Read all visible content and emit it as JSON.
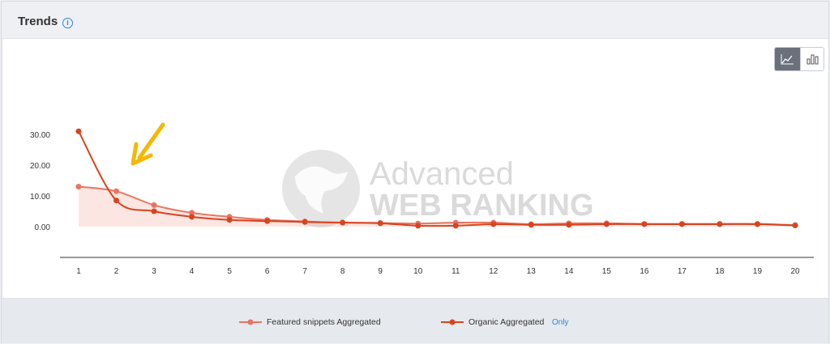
{
  "header": {
    "title": "Trends",
    "info_icon": "info-icon"
  },
  "toggle": {
    "line_icon": "line-chart-icon",
    "bar_icon": "bar-chart-icon",
    "active": "line"
  },
  "watermark": {
    "line1": "Advanced",
    "line2": "WEB RANKING",
    "icon": "globe-icon"
  },
  "annotation": {
    "icon": "arrow-icon",
    "color": "#f5b800"
  },
  "legend": {
    "items": [
      {
        "label": "Featured snippets Aggregated",
        "color": "#e87560"
      },
      {
        "label": "Organic Aggregated",
        "color": "#d9431e"
      }
    ],
    "only_label": "Only"
  },
  "chart_data": {
    "type": "line",
    "x": [
      1,
      2,
      3,
      4,
      5,
      6,
      7,
      8,
      9,
      10,
      11,
      12,
      13,
      14,
      15,
      16,
      17,
      18,
      19,
      20
    ],
    "ylim": [
      0,
      30
    ],
    "yticks": [
      "0.00",
      "10.00",
      "20.00",
      "30.00"
    ],
    "ytick_values": [
      0,
      10,
      20,
      30
    ],
    "grid": false,
    "legend_position": "bottom",
    "series": [
      {
        "name": "Featured snippets Aggregated",
        "color": "#e87560",
        "area": true,
        "values": [
          13,
          11.5,
          7,
          4.5,
          3.2,
          2.2,
          1.7,
          1.3,
          1.2,
          1.0,
          1.3,
          1.3,
          0.8,
          1.1,
          1.1,
          0.9,
          0.9,
          0.9,
          0.9,
          0.5
        ]
      },
      {
        "name": "Organic Aggregated",
        "color": "#d9431e",
        "area": false,
        "values": [
          31,
          8.5,
          5,
          3.2,
          2.2,
          1.8,
          1.5,
          1.3,
          1.1,
          0.3,
          0.3,
          0.8,
          0.6,
          0.6,
          0.8,
          0.8,
          0.8,
          0.8,
          0.8,
          0.4
        ]
      }
    ]
  }
}
